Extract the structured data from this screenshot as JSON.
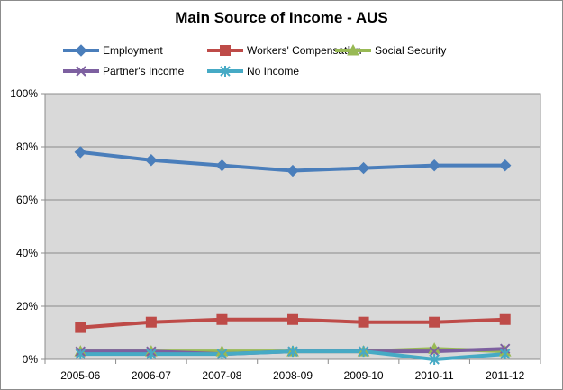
{
  "chart_data": {
    "type": "line",
    "title": "Main Source of Income - AUS",
    "categories": [
      "2005-06",
      "2006-07",
      "2007-08",
      "2008-09",
      "2009-10",
      "2010-11",
      "2011-12"
    ],
    "ylim": [
      0,
      100
    ],
    "yticks": [
      0,
      20,
      40,
      60,
      80,
      100
    ],
    "ytick_labels": [
      "0%",
      "20%",
      "40%",
      "60%",
      "80%",
      "100%"
    ],
    "grid": true,
    "legend_position": "top",
    "series": [
      {
        "name": "Employment",
        "color": "#4a7ebb",
        "marker": "diamond",
        "values": [
          78,
          75,
          73,
          71,
          72,
          73,
          73
        ]
      },
      {
        "name": "Workers' Compensation",
        "color": "#be4b48",
        "marker": "square",
        "values": [
          12,
          14,
          15,
          15,
          14,
          14,
          15
        ]
      },
      {
        "name": "Social Security",
        "color": "#98b954",
        "marker": "triangle",
        "values": [
          3,
          3,
          3,
          3,
          3,
          4,
          3
        ]
      },
      {
        "name": "Partner's Income",
        "color": "#7d60a0",
        "marker": "x",
        "values": [
          3,
          3,
          2,
          3,
          3,
          3,
          4
        ]
      },
      {
        "name": "No Income",
        "color": "#46aac5",
        "marker": "star",
        "values": [
          2,
          2,
          2,
          3,
          3,
          0,
          2
        ]
      }
    ]
  }
}
